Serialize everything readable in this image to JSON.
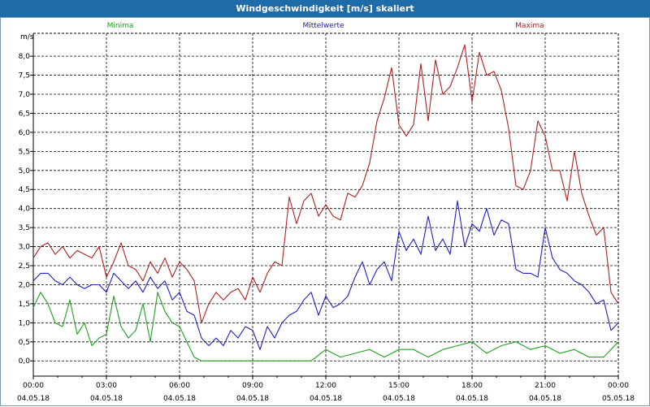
{
  "window": {
    "title": "Windgeschwindigkeit [m/s] skaliert"
  },
  "chart_data": {
    "type": "line",
    "title": "Windgeschwindigkeit [m/s] skaliert",
    "ylabel": "m/s",
    "ylim": [
      -0.4,
      8.6
    ],
    "y_ticks": [
      "0,0",
      "0,5",
      "1,0",
      "1,5",
      "2,0",
      "2,5",
      "3,0",
      "3,5",
      "4,0",
      "4,5",
      "5,0",
      "5,5",
      "6,0",
      "6,5",
      "7,0",
      "7,5",
      "8,0"
    ],
    "x_range_hours": [
      0,
      24
    ],
    "x_ticks": [
      {
        "time": "00:00",
        "date": "04.05.18"
      },
      {
        "time": "03:00",
        "date": "04.05.18"
      },
      {
        "time": "06:00",
        "date": "04.05.18"
      },
      {
        "time": "09:00",
        "date": "04.05.18"
      },
      {
        "time": "12:00",
        "date": "04.05.18"
      },
      {
        "time": "15:00",
        "date": "04.05.18"
      },
      {
        "time": "18:00",
        "date": "04.05.18"
      },
      {
        "time": "21:00",
        "date": "04.05.18"
      },
      {
        "time": "00:00",
        "date": "05.05.18"
      }
    ],
    "grid": true,
    "series": [
      {
        "name": "Minima",
        "color": "#1ea01e",
        "x": [
          0,
          0.3,
          0.6,
          0.9,
          1.2,
          1.5,
          1.8,
          2.1,
          2.4,
          2.7,
          3.0,
          3.3,
          3.6,
          3.9,
          4.2,
          4.5,
          4.8,
          5.1,
          5.4,
          5.7,
          6.0,
          6.3,
          6.6,
          6.9,
          7.2,
          7.8,
          8.4,
          9.0,
          9.6,
          10.2,
          10.8,
          11.4,
          12.0,
          12.6,
          13.2,
          13.8,
          14.4,
          15.0,
          15.6,
          16.2,
          16.8,
          17.4,
          18.0,
          18.6,
          19.2,
          19.8,
          20.4,
          21.0,
          21.6,
          22.2,
          22.8,
          23.4,
          24.0
        ],
        "values": [
          1.4,
          1.8,
          1.5,
          1.0,
          0.9,
          1.6,
          0.7,
          1.0,
          0.4,
          0.6,
          0.7,
          1.7,
          0.9,
          0.6,
          0.8,
          1.5,
          0.5,
          1.8,
          1.3,
          1.0,
          0.9,
          0.5,
          0.1,
          0.0,
          0.0,
          0.0,
          0.0,
          0.0,
          0.0,
          0.0,
          0.0,
          0.0,
          0.3,
          0.1,
          0.2,
          0.3,
          0.1,
          0.3,
          0.3,
          0.1,
          0.3,
          0.4,
          0.5,
          0.2,
          0.4,
          0.5,
          0.3,
          0.4,
          0.2,
          0.3,
          0.1,
          0.1,
          0.5
        ]
      },
      {
        "name": "Mittelwerte",
        "color": "#2020c0",
        "x": [
          0,
          0.3,
          0.6,
          0.9,
          1.2,
          1.5,
          1.8,
          2.1,
          2.4,
          2.7,
          3.0,
          3.3,
          3.6,
          3.9,
          4.2,
          4.5,
          4.8,
          5.1,
          5.4,
          5.7,
          6.0,
          6.3,
          6.6,
          6.9,
          7.2,
          7.5,
          7.8,
          8.1,
          8.4,
          8.7,
          9.0,
          9.3,
          9.6,
          9.9,
          10.2,
          10.5,
          10.8,
          11.1,
          11.4,
          11.7,
          12.0,
          12.3,
          12.6,
          12.9,
          13.2,
          13.5,
          13.8,
          14.1,
          14.4,
          14.7,
          15.0,
          15.3,
          15.6,
          15.9,
          16.2,
          16.5,
          16.8,
          17.1,
          17.4,
          17.7,
          18.0,
          18.3,
          18.6,
          18.9,
          19.2,
          19.5,
          19.8,
          20.1,
          20.4,
          20.7,
          21.0,
          21.3,
          21.6,
          21.9,
          22.2,
          22.5,
          22.8,
          23.1,
          23.4,
          23.7,
          24.0
        ],
        "values": [
          2.1,
          2.3,
          2.3,
          2.1,
          2.0,
          2.2,
          2.0,
          1.9,
          2.0,
          2.0,
          1.8,
          2.3,
          2.1,
          1.9,
          2.1,
          1.8,
          2.2,
          1.9,
          2.1,
          1.6,
          1.8,
          1.3,
          1.2,
          0.6,
          0.4,
          0.6,
          0.4,
          0.8,
          0.6,
          0.9,
          0.8,
          0.3,
          0.9,
          0.6,
          1.0,
          1.2,
          1.3,
          1.6,
          1.8,
          1.2,
          1.7,
          1.4,
          1.5,
          1.7,
          2.2,
          2.6,
          2.0,
          2.4,
          2.6,
          2.1,
          3.4,
          2.9,
          3.2,
          2.8,
          3.8,
          2.9,
          3.2,
          2.8,
          4.2,
          3.0,
          3.6,
          3.4,
          4.0,
          3.3,
          3.7,
          3.6,
          2.4,
          2.3,
          2.3,
          2.2,
          3.5,
          2.7,
          2.4,
          2.3,
          2.1,
          2.0,
          1.8,
          1.5,
          1.6,
          0.8,
          1.0
        ]
      },
      {
        "name": "Maxima",
        "color": "#b02020",
        "x": [
          0,
          0.3,
          0.6,
          0.9,
          1.2,
          1.5,
          1.8,
          2.1,
          2.4,
          2.7,
          3.0,
          3.3,
          3.6,
          3.9,
          4.2,
          4.5,
          4.8,
          5.1,
          5.4,
          5.7,
          6.0,
          6.3,
          6.6,
          6.9,
          7.2,
          7.5,
          7.8,
          8.1,
          8.4,
          8.7,
          9.0,
          9.3,
          9.6,
          9.9,
          10.2,
          10.5,
          10.8,
          11.1,
          11.4,
          11.7,
          12.0,
          12.3,
          12.6,
          12.9,
          13.2,
          13.5,
          13.8,
          14.1,
          14.4,
          14.7,
          15.0,
          15.3,
          15.6,
          15.9,
          16.2,
          16.5,
          16.8,
          17.1,
          17.4,
          17.7,
          18.0,
          18.3,
          18.6,
          18.9,
          19.2,
          19.5,
          19.8,
          20.1,
          20.4,
          20.7,
          21.0,
          21.3,
          21.6,
          21.9,
          22.2,
          22.5,
          22.8,
          23.1,
          23.4,
          23.7,
          24.0
        ],
        "values": [
          2.7,
          3.0,
          3.1,
          2.8,
          3.0,
          2.7,
          2.9,
          2.8,
          2.7,
          3.0,
          2.2,
          2.6,
          3.1,
          2.5,
          2.4,
          2.1,
          2.6,
          2.3,
          2.7,
          2.2,
          2.6,
          2.4,
          2.1,
          1.0,
          1.5,
          1.8,
          1.6,
          1.8,
          1.9,
          1.6,
          2.2,
          1.8,
          2.3,
          2.6,
          2.5,
          4.3,
          3.6,
          4.2,
          4.4,
          3.8,
          4.1,
          3.8,
          3.7,
          4.4,
          4.3,
          4.6,
          5.2,
          6.3,
          6.9,
          7.7,
          6.2,
          5.9,
          6.2,
          7.8,
          6.3,
          7.9,
          7.0,
          7.2,
          7.7,
          8.3,
          6.8,
          8.1,
          7.5,
          7.6,
          7.1,
          6.1,
          4.6,
          4.5,
          5.0,
          6.3,
          5.9,
          5.0,
          5.0,
          4.2,
          5.5,
          4.4,
          3.8,
          3.3,
          3.5,
          1.8,
          1.5
        ]
      }
    ]
  }
}
